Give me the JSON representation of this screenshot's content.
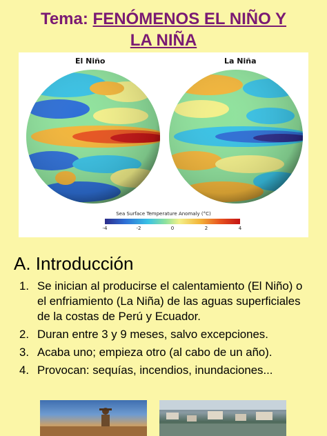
{
  "header": {
    "title_prefix": "Tema:",
    "title_line1": "FENÓMENOS EL NIÑO Y",
    "title_line2": "LA NIÑA"
  },
  "figure": {
    "left_label": "El Niño",
    "right_label": "La Niña",
    "legend_title": "Sea Surface Temperature Anomaly (°C)",
    "ticks": [
      "-4",
      "-2",
      "0",
      "2",
      "4"
    ],
    "colors": {
      "cold": "#2c2c8a",
      "cool": "#39c2e5",
      "neutral": "#8fe29c",
      "warm": "#f3b63a",
      "hot": "#c41414"
    }
  },
  "section": {
    "heading": "A. Introducción",
    "items": [
      {
        "num": "1.",
        "text": "Se inician al producirse el calentamiento (El Niño) o el enfriamiento (La Niña) de las aguas superficiales de la costas de Perú y Ecuador."
      },
      {
        "num": "2.",
        "text": "Duran entre 3 y 9 meses, salvo excepciones."
      },
      {
        "num": "3.",
        "text": "Acaba uno; empieza otro (al cabo de un año)."
      },
      {
        "num": "4.",
        "text": "Provocan: sequías, incendios, inundaciones..."
      }
    ]
  },
  "photos": {
    "left": "drought-photo",
    "right": "flood-photo"
  }
}
